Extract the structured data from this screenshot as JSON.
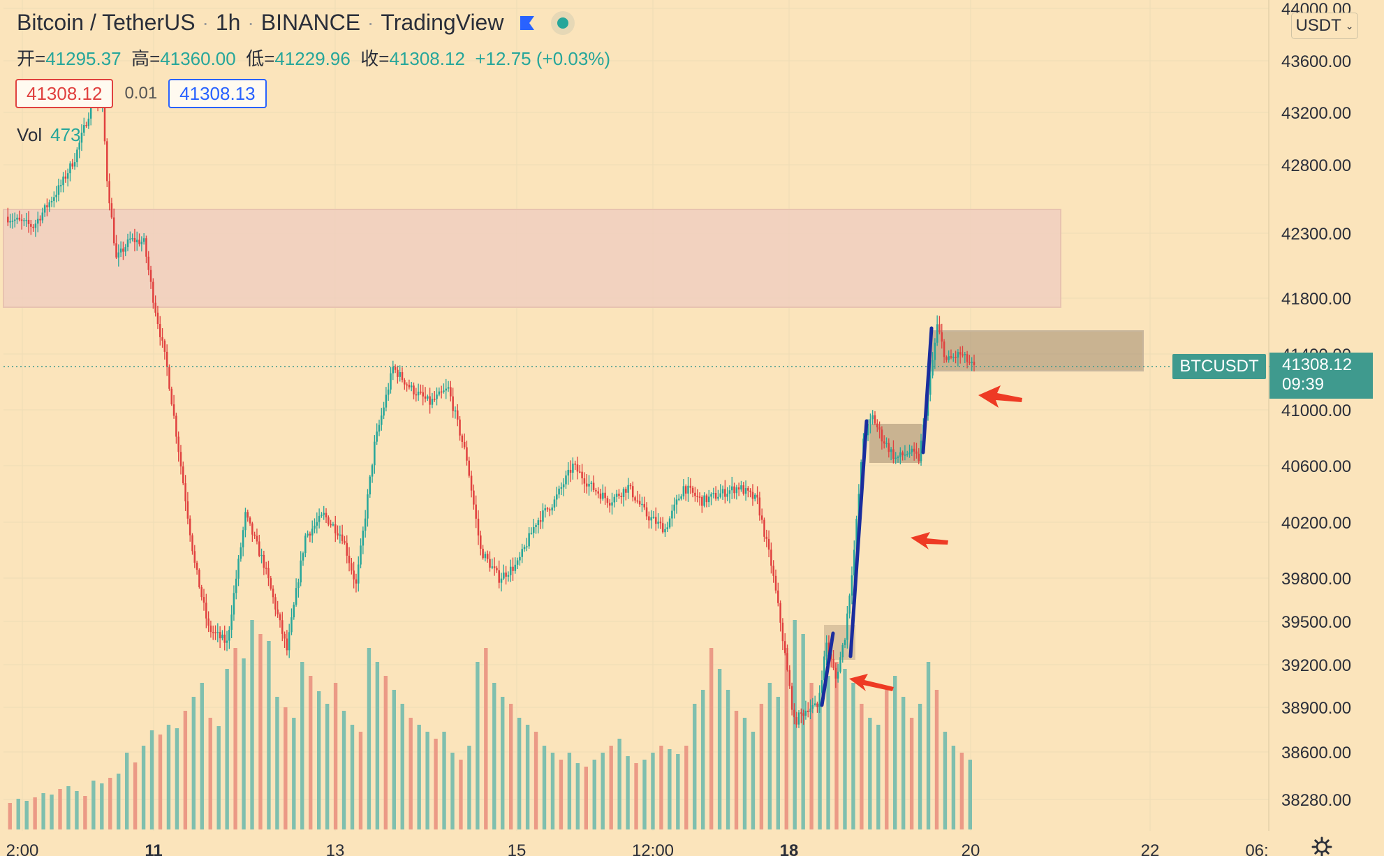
{
  "header": {
    "symbol": "Bitcoin / TetherUS",
    "interval": "1h",
    "exchange": "BINANCE",
    "provider": "TradingView",
    "ohlc": {
      "open_label": "开=",
      "open": "41295.37",
      "high_label": "高=",
      "high": "41360.00",
      "low_label": "低=",
      "low": "41229.96",
      "close_label": "收=",
      "close": "41308.12",
      "change": "+12.75 (+0.03%)"
    },
    "sell_price": "41308.12",
    "spread": "0.01",
    "buy_price": "41308.13",
    "vol_label": "Vol",
    "vol_value": "473"
  },
  "currency_select": {
    "value": "USDT"
  },
  "price_axis": {
    "labels": [
      "44000.00",
      "43600.00",
      "43200.00",
      "42800.00",
      "42300.00",
      "41800.00",
      "41400.00",
      "41000.00",
      "40600.00",
      "40200.00",
      "39800.00",
      "39500.00",
      "39200.00",
      "38900.00",
      "38600.00",
      "38280.00"
    ],
    "symbol_tag": "BTCUSDT",
    "last_price": "41308.12",
    "countdown": "09:39"
  },
  "time_axis": {
    "labels": [
      "2:00",
      "11",
      "13",
      "15",
      "12:00",
      "18",
      "20",
      "22",
      "06:"
    ],
    "bold": [
      "11",
      "18"
    ]
  },
  "colors": {
    "background": "#fbe4bb",
    "up": "#26a69a",
    "down": "#e0413f",
    "zone": "#f0cfc0",
    "box": "#a08a70",
    "trendline": "#1a2d9e",
    "arrow": "#ee3a24",
    "tag": "#3f9a8e"
  },
  "chart_data": {
    "type": "candlestick",
    "interval": "1h",
    "price_range": [
      38100,
      44050
    ],
    "last_price": 41308.12,
    "path": [
      [
        0,
        42420
      ],
      [
        12,
        42350
      ],
      [
        24,
        42650
      ],
      [
        30,
        42850
      ],
      [
        38,
        43300
      ],
      [
        42,
        43250
      ],
      [
        44,
        42700
      ],
      [
        48,
        42100
      ],
      [
        54,
        42250
      ],
      [
        60,
        42230
      ],
      [
        64,
        41800
      ],
      [
        70,
        41300
      ],
      [
        76,
        40600
      ],
      [
        82,
        39900
      ],
      [
        88,
        39450
      ],
      [
        96,
        39350
      ],
      [
        104,
        40250
      ],
      [
        112,
        39900
      ],
      [
        122,
        39300
      ],
      [
        130,
        40100
      ],
      [
        138,
        40250
      ],
      [
        146,
        40100
      ],
      [
        152,
        39750
      ],
      [
        160,
        40750
      ],
      [
        168,
        41300
      ],
      [
        176,
        41150
      ],
      [
        184,
        41050
      ],
      [
        192,
        41150
      ],
      [
        200,
        40650
      ],
      [
        206,
        40000
      ],
      [
        214,
        39800
      ],
      [
        222,
        39900
      ],
      [
        230,
        40200
      ],
      [
        238,
        40350
      ],
      [
        246,
        40600
      ],
      [
        254,
        40450
      ],
      [
        262,
        40350
      ],
      [
        270,
        40450
      ],
      [
        278,
        40250
      ],
      [
        286,
        40150
      ],
      [
        294,
        40450
      ],
      [
        302,
        40350
      ],
      [
        310,
        40400
      ],
      [
        318,
        40450
      ],
      [
        326,
        40350
      ],
      [
        332,
        39900
      ],
      [
        336,
        39500
      ],
      [
        342,
        38800
      ],
      [
        348,
        38900
      ],
      [
        352,
        38900
      ],
      [
        356,
        39350
      ],
      [
        360,
        39100
      ],
      [
        364,
        39400
      ],
      [
        368,
        40000
      ],
      [
        372,
        40800
      ],
      [
        376,
        40950
      ],
      [
        380,
        40800
      ],
      [
        386,
        40650
      ],
      [
        392,
        40700
      ],
      [
        396,
        40650
      ],
      [
        400,
        41100
      ],
      [
        404,
        41600
      ],
      [
        408,
        41350
      ],
      [
        414,
        41400
      ],
      [
        420,
        41300
      ]
    ],
    "volume": [
      38,
      44,
      41,
      46,
      52,
      50,
      58,
      62,
      55,
      48,
      70,
      66,
      74,
      80,
      110,
      96,
      120,
      142,
      136,
      150,
      145,
      170,
      190,
      210,
      160,
      148,
      230,
      260,
      245,
      300,
      280,
      270,
      190,
      175,
      160,
      240,
      220,
      198,
      180,
      210,
      170,
      150,
      140,
      260,
      240,
      220,
      200,
      180,
      160,
      150,
      140,
      130,
      140,
      110,
      100,
      120,
      240,
      260,
      210,
      190,
      180,
      160,
      150,
      140,
      120,
      110,
      100,
      110,
      95,
      90,
      100,
      110,
      120,
      130,
      105,
      95,
      100,
      110,
      120,
      115,
      108,
      120,
      180,
      200,
      260,
      230,
      200,
      170,
      160,
      140,
      180,
      210,
      190,
      260,
      300,
      280,
      210,
      180,
      220,
      240,
      230,
      210,
      180,
      160,
      150,
      200,
      220,
      190,
      160,
      180,
      240,
      200,
      140,
      120,
      110,
      100
    ]
  }
}
